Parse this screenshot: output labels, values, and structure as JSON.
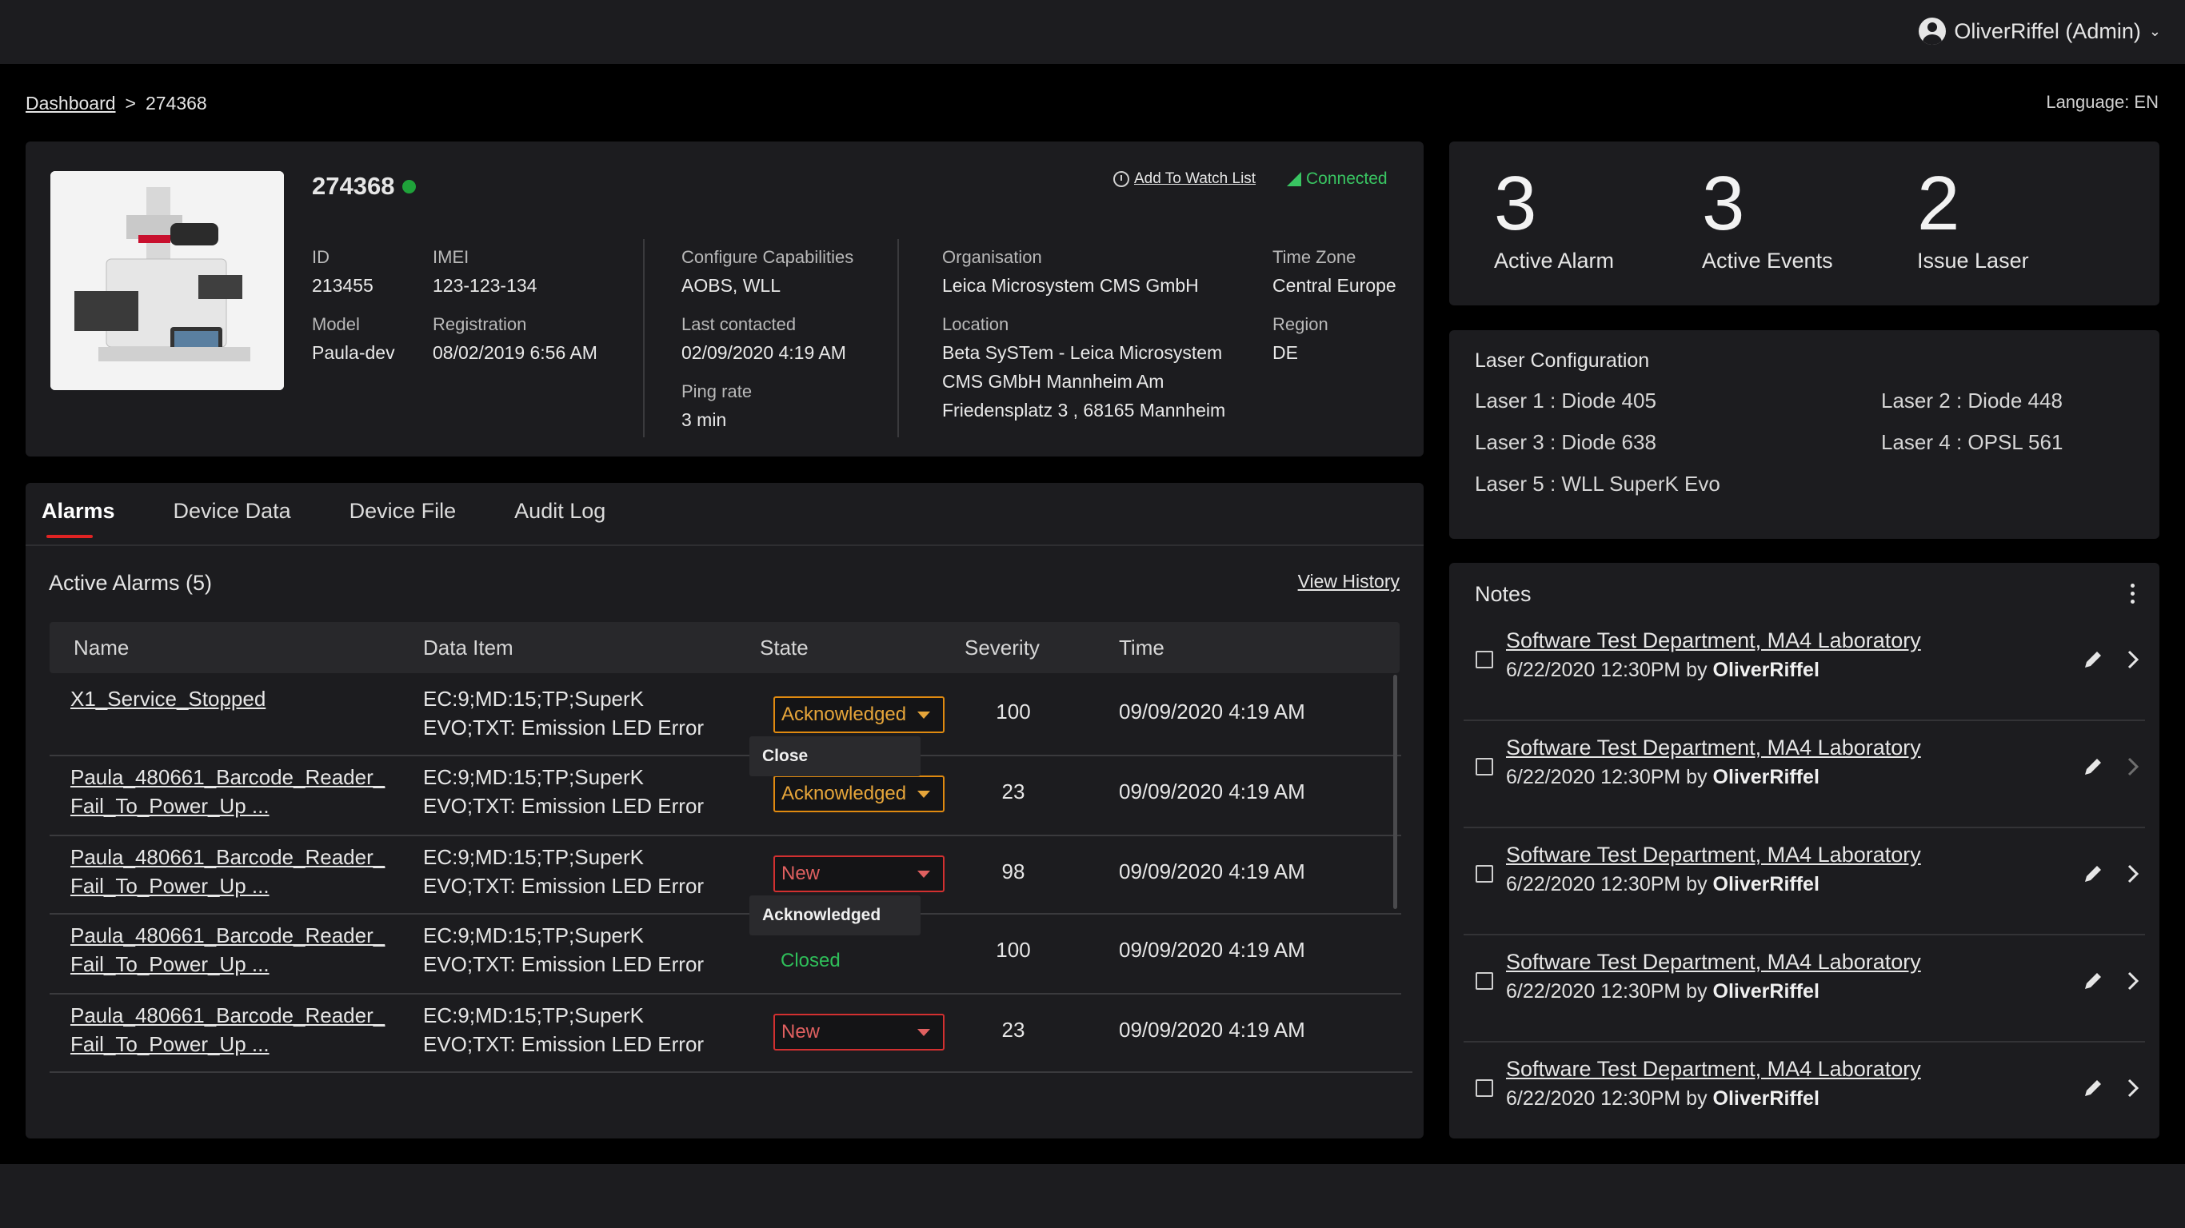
{
  "header": {
    "user_label": "OliverRiffel (Admin)"
  },
  "breadcrumb": {
    "root": "Dashboard",
    "separator": ">",
    "current": "274368"
  },
  "language": "Language: EN",
  "device": {
    "title": "274368",
    "watch_label": "Add To Watch List",
    "connection": "Connected",
    "fields": {
      "id_label": "ID",
      "id_value": "213455",
      "imei_label": "IMEI",
      "imei_value": "123-123-134",
      "model_label": "Model",
      "model_value": "Paula-dev",
      "registration_label": "Registration",
      "registration_value": "08/02/2019 6:56 AM",
      "capabilities_label": "Configure Capabilities",
      "capabilities_value": "AOBS, WLL",
      "last_contacted_label": "Last contacted",
      "last_contacted_value": "02/09/2020 4:19 AM",
      "ping_label": "Ping rate",
      "ping_value": "3 min",
      "org_label": "Organisation",
      "org_value": "Leica Microsystem  CMS GmbH",
      "location_label": "Location",
      "location_line1": "Beta SySTem - Leica  Microsystem",
      "location_line2": "CMS GMbH Mannheim Am",
      "location_line3": "Friedensplatz 3 , 68165 Mannheim",
      "timezone_label": "Time Zone",
      "timezone_value": "Central Europe",
      "region_label": "Region",
      "region_value": "DE"
    }
  },
  "tabs": [
    "Alarms",
    "Device Data",
    "Device File",
    "Audit Log"
  ],
  "alarms": {
    "title": "Active Alarms (5)",
    "view_history": "View History",
    "columns": [
      "Name",
      "Data Item",
      "State",
      "Severity",
      "Time"
    ],
    "rows": [
      {
        "name1": "X1_Service_Stopped",
        "name2": "",
        "data1": "EC:9;MD:15;TP;SuperK",
        "data2": "EVO;TXT: Emission LED Error",
        "state": "Acknowledged",
        "severity": "100",
        "time": "09/09/2020 4:19 AM"
      },
      {
        "name1": "Paula_480661_Barcode_Reader_",
        "name2": "Fail_To_Power_Up ...",
        "data1": "EC:9;MD:15;TP;SuperK",
        "data2": "EVO;TXT: Emission LED Error",
        "state": "Acknowledged",
        "severity": "23",
        "time": "09/09/2020 4:19 AM"
      },
      {
        "name1": "Paula_480661_Barcode_Reader_",
        "name2": "Fail_To_Power_Up ...",
        "data1": "EC:9;MD:15;TP;SuperK",
        "data2": "EVO;TXT: Emission LED Error",
        "state": "New",
        "severity": "98",
        "time": "09/09/2020 4:19 AM"
      },
      {
        "name1": "Paula_480661_Barcode_Reader_",
        "name2": "Fail_To_Power_Up ...",
        "data1": "EC:9;MD:15;TP;SuperK",
        "data2": "EVO;TXT: Emission LED Error",
        "state": "Closed",
        "severity": "100",
        "time": "09/09/2020 4:19 AM"
      },
      {
        "name1": "Paula_480661_Barcode_Reader_",
        "name2": "Fail_To_Power_Up ...",
        "data1": "EC:9;MD:15;TP;SuperK",
        "data2": "EVO;TXT: Emission LED Error",
        "state": "New",
        "severity": "23",
        "time": "09/09/2020 4:19 AM"
      }
    ],
    "dropdown_open_1": "Close",
    "dropdown_open_3": "Acknowledged"
  },
  "stats": [
    {
      "value": "3",
      "label": "Active Alarm"
    },
    {
      "value": "3",
      "label": "Active Events"
    },
    {
      "value": "2",
      "label": "Issue Laser"
    }
  ],
  "laser": {
    "title": "Laser Configuration",
    "items": [
      "Laser 1 : Diode 405",
      "Laser 2 : Diode 448",
      "Laser 3 : Diode 638",
      "Laser 4 : OPSL 561",
      "Laser 5 : WLL SuperK Evo"
    ]
  },
  "notes": {
    "title": "Notes",
    "items": [
      {
        "title": "Software Test Department, MA4 Laboratory",
        "meta": "6/22/2020 12:30PM by ",
        "author": "OliverRiffel"
      },
      {
        "title": "Software Test Department, MA4 Laboratory",
        "meta": "6/22/2020 12:30PM by ",
        "author": "OliverRiffel"
      },
      {
        "title": "Software Test Department, MA4 Laboratory",
        "meta": "6/22/2020 12:30PM by ",
        "author": "OliverRiffel"
      },
      {
        "title": "Software Test Department, MA4 Laboratory",
        "meta": "6/22/2020 12:30PM by ",
        "author": "OliverRiffel"
      },
      {
        "title": "Software Test Department, MA4 Laboratory",
        "meta": "6/22/2020 12:30PM by ",
        "author": "OliverRiffel"
      }
    ]
  },
  "colors": {
    "accent_red": "#e02323",
    "connected_green": "#39c562",
    "acknowledged_orange": "#e08a10",
    "new_red": "#d23030",
    "closed_green": "#2fbf5a"
  }
}
